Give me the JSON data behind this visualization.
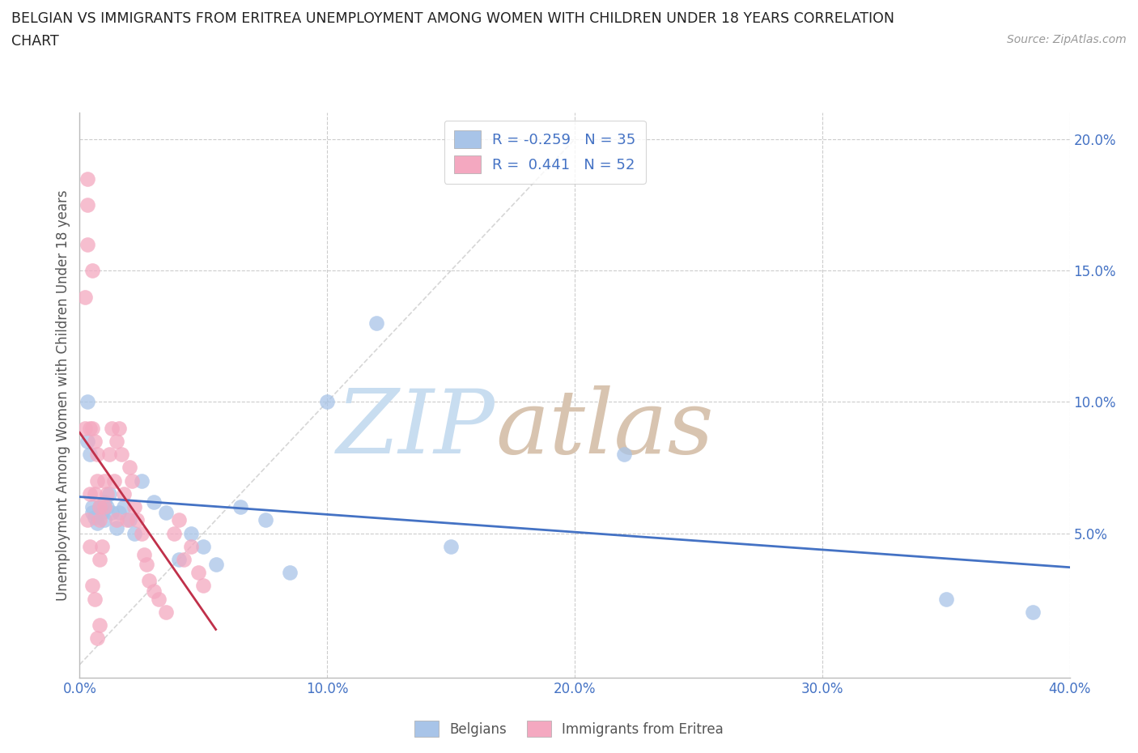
{
  "title_line1": "BELGIAN VS IMMIGRANTS FROM ERITREA UNEMPLOYMENT AMONG WOMEN WITH CHILDREN UNDER 18 YEARS CORRELATION",
  "title_line2": "CHART",
  "source": "Source: ZipAtlas.com",
  "ylabel": "Unemployment Among Women with Children Under 18 years",
  "xlim": [
    0.0,
    0.4
  ],
  "ylim": [
    -0.005,
    0.21
  ],
  "belgian_color": "#a8c4e8",
  "eritrean_color": "#f4a8c0",
  "belgian_line_color": "#4472c4",
  "eritrean_line_color": "#c0304a",
  "diag_color": "#cccccc",
  "belgian_R": -0.259,
  "eritrean_R": 0.441,
  "belgian_N": 35,
  "eritrean_N": 52,
  "background_color": "#ffffff",
  "grid_color": "#cccccc",
  "title_color": "#222222",
  "axis_label_color": "#555555",
  "tick_color": "#4472c4",
  "source_color": "#999999",
  "watermark_zip_color": "#cce0f5",
  "watermark_atlas_color": "#ddc8b8",
  "belgian_x": [
    0.003,
    0.003,
    0.004,
    0.005,
    0.005,
    0.006,
    0.007,
    0.008,
    0.009,
    0.01,
    0.01,
    0.011,
    0.012,
    0.013,
    0.015,
    0.016,
    0.018,
    0.02,
    0.022,
    0.025,
    0.03,
    0.035,
    0.04,
    0.045,
    0.05,
    0.055,
    0.065,
    0.075,
    0.085,
    0.1,
    0.12,
    0.15,
    0.22,
    0.35,
    0.385
  ],
  "belgian_y": [
    0.1,
    0.085,
    0.08,
    0.06,
    0.058,
    0.056,
    0.054,
    0.06,
    0.058,
    0.062,
    0.055,
    0.06,
    0.065,
    0.058,
    0.052,
    0.058,
    0.06,
    0.055,
    0.05,
    0.07,
    0.062,
    0.058,
    0.04,
    0.05,
    0.045,
    0.038,
    0.06,
    0.055,
    0.035,
    0.1,
    0.13,
    0.045,
    0.08,
    0.025,
    0.02
  ],
  "eritrean_x": [
    0.002,
    0.002,
    0.003,
    0.003,
    0.003,
    0.004,
    0.004,
    0.005,
    0.005,
    0.006,
    0.006,
    0.007,
    0.007,
    0.008,
    0.008,
    0.008,
    0.009,
    0.01,
    0.01,
    0.011,
    0.012,
    0.013,
    0.014,
    0.015,
    0.015,
    0.016,
    0.017,
    0.018,
    0.019,
    0.02,
    0.021,
    0.022,
    0.023,
    0.025,
    0.026,
    0.027,
    0.028,
    0.03,
    0.032,
    0.035,
    0.038,
    0.04,
    0.042,
    0.045,
    0.048,
    0.05,
    0.003,
    0.004,
    0.005,
    0.006,
    0.007,
    0.008
  ],
  "eritrean_y": [
    0.14,
    0.09,
    0.185,
    0.175,
    0.16,
    0.09,
    0.065,
    0.15,
    0.09,
    0.065,
    0.085,
    0.08,
    0.07,
    0.06,
    0.055,
    0.04,
    0.045,
    0.07,
    0.06,
    0.065,
    0.08,
    0.09,
    0.07,
    0.085,
    0.055,
    0.09,
    0.08,
    0.065,
    0.055,
    0.075,
    0.07,
    0.06,
    0.055,
    0.05,
    0.042,
    0.038,
    0.032,
    0.028,
    0.025,
    0.02,
    0.05,
    0.055,
    0.04,
    0.045,
    0.035,
    0.03,
    0.055,
    0.045,
    0.03,
    0.025,
    0.01,
    0.015
  ]
}
